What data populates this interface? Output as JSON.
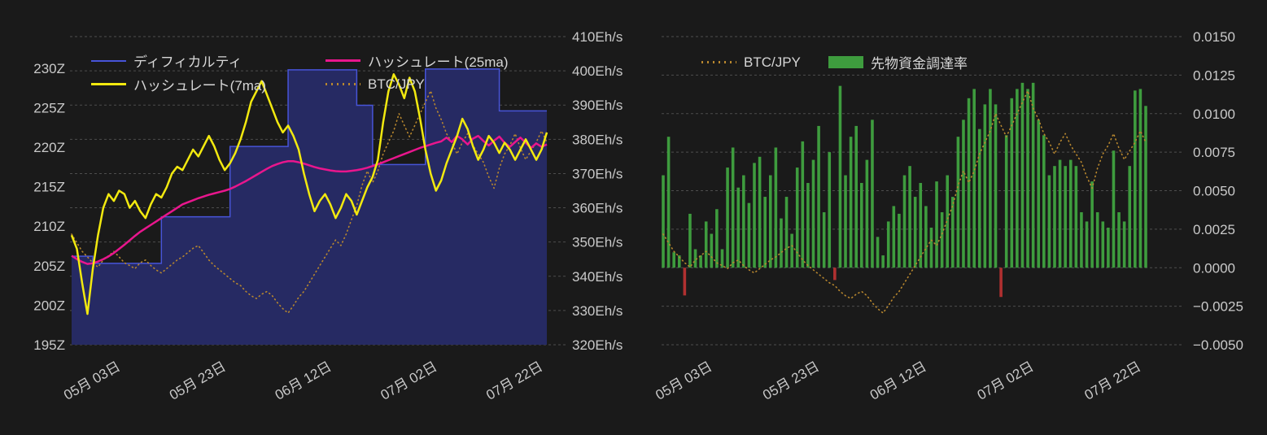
{
  "page": {
    "background": "#1a1a1a",
    "text_color": "#c9c9c9",
    "grid_color": "#4d4d4d"
  },
  "chart_data": [
    {
      "type": "line",
      "name": "difficulty-and-hashrate",
      "x_tick_labels": [
        "05月 03日",
        "05月 23日",
        "06月 12日",
        "07月 02日",
        "07月 22日"
      ],
      "x_tick_days": [
        2,
        22,
        42,
        62,
        82
      ],
      "x_range_days": [
        0,
        90
      ],
      "axes": {
        "left": {
          "unit": "Z",
          "min": 195,
          "max": 234,
          "grid": false,
          "tick_values": [
            195,
            200,
            205,
            210,
            215,
            220,
            225,
            230
          ],
          "tick_labels": [
            "195Z",
            "200Z",
            "205Z",
            "210Z",
            "215Z",
            "220Z",
            "225Z",
            "230Z"
          ]
        },
        "right": {
          "unit": "Eh/s",
          "min": 320,
          "max": 410,
          "grid": true,
          "tick_values": [
            320,
            330,
            340,
            350,
            360,
            370,
            380,
            390,
            400,
            410
          ],
          "tick_labels": [
            "320Eh/s",
            "330Eh/s",
            "340Eh/s",
            "350Eh/s",
            "360Eh/s",
            "370Eh/s",
            "380Eh/s",
            "390Eh/s",
            "400Eh/s",
            "410Eh/s"
          ]
        }
      },
      "series": [
        {
          "name": "ディフィカルティ",
          "axis": "left",
          "style": "step-area",
          "z": 0,
          "color": "#4754d8",
          "fill": "#262a63",
          "width": 1.5,
          "values": [
            206.2,
            206.2,
            206.2,
            206.2,
            205.3,
            205.3,
            205.3,
            205.3,
            205.3,
            205.3,
            205.3,
            205.3,
            205.3,
            205.3,
            205.3,
            205.3,
            205.3,
            211.2,
            211.2,
            211.2,
            211.2,
            211.2,
            211.2,
            211.2,
            211.2,
            211.2,
            211.2,
            211.2,
            211.2,
            211.2,
            220.1,
            220.1,
            220.1,
            220.1,
            220.1,
            220.1,
            220.1,
            220.1,
            220.1,
            220.1,
            220.1,
            229.8,
            229.8,
            229.8,
            229.8,
            229.8,
            229.8,
            229.8,
            229.8,
            229.8,
            229.8,
            229.8,
            229.8,
            229.8,
            225.3,
            225.3,
            225.3,
            217.8,
            217.8,
            217.8,
            217.8,
            217.8,
            217.8,
            217.8,
            217.8,
            217.8,
            217.8,
            229.9,
            229.9,
            229.9,
            229.9,
            229.9,
            229.9,
            229.9,
            229.9,
            229.9,
            229.9,
            229.9,
            229.9,
            229.9,
            229.9,
            224.6,
            224.6,
            224.6,
            224.6,
            224.6,
            224.6,
            224.6,
            224.6,
            224.6,
            224.6
          ]
        },
        {
          "name": "ハッシュレート(7ma)",
          "axis": "right",
          "style": "line",
          "z": 3,
          "color": "#f2e90f",
          "width": 2.5,
          "values": [
            352,
            348,
            338,
            329,
            342,
            352,
            360,
            364,
            362,
            365,
            364,
            360,
            362,
            359,
            357,
            361,
            364,
            363,
            366,
            370,
            372,
            371,
            374,
            377,
            375,
            378,
            381,
            378,
            374,
            371,
            373,
            376,
            380,
            385,
            391,
            394,
            397,
            393,
            389,
            385,
            382,
            384,
            381,
            377,
            370,
            364,
            359,
            362,
            364,
            361,
            357,
            360,
            364,
            362,
            358,
            362,
            366,
            369,
            374,
            385,
            394,
            399,
            396,
            392,
            398,
            394,
            386,
            377,
            370,
            365,
            368,
            373,
            377,
            381,
            386,
            383,
            378,
            374,
            377,
            381,
            379,
            376,
            379,
            377,
            374,
            377,
            380,
            377,
            374,
            377,
            382
          ]
        },
        {
          "name": "ハッシュレート(25ma)",
          "axis": "right",
          "style": "line",
          "z": 2,
          "color": "#e9168d",
          "width": 2.5,
          "values": [
            346,
            345,
            344.2,
            343.6,
            343.8,
            344.3,
            345,
            345.8,
            346.8,
            348,
            349.2,
            350.5,
            351.8,
            353,
            354,
            355,
            356,
            357,
            358,
            359,
            360,
            361,
            361.6,
            362.2,
            362.8,
            363.3,
            363.8,
            364.2,
            364.6,
            365,
            365.5,
            366.2,
            367,
            367.8,
            368.7,
            369.6,
            370.5,
            371.4,
            372.2,
            372.8,
            373.3,
            373.6,
            373.6,
            373.3,
            372.9,
            372.4,
            371.9,
            371.5,
            371.2,
            370.9,
            370.7,
            370.6,
            370.6,
            370.8,
            371,
            371.3,
            371.7,
            372.2,
            372.7,
            373.3,
            373.9,
            374.5,
            375.1,
            375.7,
            376.3,
            376.9,
            377.5,
            378,
            378.5,
            379,
            379.4,
            380.5,
            379.2,
            381,
            380,
            378.5,
            380.2,
            381,
            379.5,
            378.2,
            379.6,
            380.8,
            379,
            377.8,
            379.2,
            380.5,
            379,
            377.5,
            378.8,
            377.8,
            378.5
          ]
        },
        {
          "name": "BTC/JPY",
          "axis": "overlay",
          "style": "dotted",
          "z": 1,
          "color": "#b8872e",
          "width": 1.6,
          "overlay_no_axis": true,
          "values": [
            0.359,
            0.331,
            0.303,
            0.285,
            0.266,
            0.252,
            0.275,
            0.289,
            0.303,
            0.285,
            0.266,
            0.257,
            0.247,
            0.266,
            0.275,
            0.257,
            0.243,
            0.233,
            0.247,
            0.261,
            0.275,
            0.285,
            0.299,
            0.313,
            0.322,
            0.299,
            0.275,
            0.257,
            0.243,
            0.229,
            0.215,
            0.201,
            0.192,
            0.173,
            0.159,
            0.15,
            0.164,
            0.173,
            0.159,
            0.136,
            0.117,
            0.103,
            0.127,
            0.154,
            0.173,
            0.201,
            0.229,
            0.257,
            0.285,
            0.313,
            0.34,
            0.322,
            0.359,
            0.406,
            0.452,
            0.517,
            0.564,
            0.526,
            0.564,
            0.619,
            0.657,
            0.694,
            0.75,
            0.712,
            0.675,
            0.712,
            0.75,
            0.787,
            0.824,
            0.768,
            0.731,
            0.685,
            0.657,
            0.619,
            0.657,
            0.685,
            0.647,
            0.619,
            0.592,
            0.545,
            0.508,
            0.573,
            0.619,
            0.647,
            0.685,
            0.638,
            0.601,
            0.629,
            0.657,
            0.694,
            0.657
          ]
        }
      ]
    },
    {
      "type": "bar",
      "name": "futures-funding-rate",
      "x_tick_labels": [
        "05月 03日",
        "05月 23日",
        "06月 12日",
        "07月 02日",
        "07月 22日"
      ],
      "x_tick_days": [
        2,
        22,
        42,
        62,
        82
      ],
      "x_range_days": [
        0,
        90
      ],
      "axes": {
        "right": {
          "unit": "",
          "min": -0.005,
          "max": 0.015,
          "grid": true,
          "tick_values": [
            -0.005,
            -0.0025,
            0,
            0.0025,
            0.005,
            0.0075,
            0.01,
            0.0125,
            0.015
          ],
          "tick_labels": [
            "−0.0050",
            "−0.0025",
            "0.0000",
            "0.0025",
            "0.0050",
            "0.0075",
            "0.0100",
            "0.0125",
            "0.0150"
          ]
        }
      },
      "series": [
        {
          "name": "BTC/JPY",
          "axis": "overlay",
          "style": "dotted",
          "z": 1,
          "color": "#b8872e",
          "width": 1.6,
          "overlay_no_axis": true,
          "values": [
            0.359,
            0.331,
            0.303,
            0.285,
            0.266,
            0.252,
            0.275,
            0.289,
            0.303,
            0.285,
            0.266,
            0.257,
            0.247,
            0.266,
            0.275,
            0.257,
            0.243,
            0.233,
            0.247,
            0.261,
            0.275,
            0.285,
            0.299,
            0.313,
            0.322,
            0.299,
            0.275,
            0.257,
            0.243,
            0.229,
            0.215,
            0.201,
            0.192,
            0.173,
            0.159,
            0.15,
            0.164,
            0.173,
            0.159,
            0.136,
            0.117,
            0.103,
            0.127,
            0.154,
            0.173,
            0.201,
            0.229,
            0.257,
            0.285,
            0.313,
            0.34,
            0.322,
            0.359,
            0.406,
            0.452,
            0.517,
            0.564,
            0.526,
            0.564,
            0.619,
            0.657,
            0.694,
            0.75,
            0.712,
            0.675,
            0.712,
            0.75,
            0.787,
            0.824,
            0.768,
            0.731,
            0.685,
            0.657,
            0.619,
            0.657,
            0.685,
            0.647,
            0.619,
            0.592,
            0.545,
            0.508,
            0.573,
            0.619,
            0.647,
            0.685,
            0.638,
            0.601,
            0.629,
            0.657,
            0.694,
            0.657
          ]
        },
        {
          "name": "先物資金調達率",
          "axis": "right",
          "style": "bar",
          "z": 0,
          "color": "#3e9c3e",
          "negative_color": "#b03030",
          "values": [
            0.006,
            0.0085,
            0.001,
            0.0008,
            -0.0018,
            0.0035,
            0.0012,
            0.0008,
            0.003,
            0.0022,
            0.0038,
            0.0012,
            0.0065,
            0.0078,
            0.0052,
            0.006,
            0.0042,
            0.0068,
            0.0072,
            0.0046,
            0.006,
            0.0078,
            0.0032,
            0.0046,
            0.0022,
            0.0065,
            0.0082,
            0.0055,
            0.007,
            0.0092,
            0.0036,
            0.0075,
            -0.0008,
            0.0118,
            0.006,
            0.0085,
            0.0092,
            0.0055,
            0.007,
            0.0096,
            0.002,
            0.0008,
            0.003,
            0.004,
            0.0035,
            0.006,
            0.0066,
            0.0046,
            0.0055,
            0.004,
            0.0026,
            0.0056,
            0.0036,
            0.006,
            0.0046,
            0.0085,
            0.0096,
            0.011,
            0.0116,
            0.009,
            0.0106,
            0.0116,
            0.0106,
            -0.0019,
            0.0086,
            0.011,
            0.0116,
            0.012,
            0.0116,
            0.012,
            0.0096,
            0.0086,
            0.006,
            0.0066,
            0.007,
            0.0066,
            0.007,
            0.0066,
            0.0036,
            0.003,
            0.0056,
            0.0036,
            0.003,
            0.0026,
            0.0076,
            0.0036,
            0.003,
            0.0066,
            0.0115,
            0.0116,
            0.0105
          ]
        }
      ]
    }
  ]
}
